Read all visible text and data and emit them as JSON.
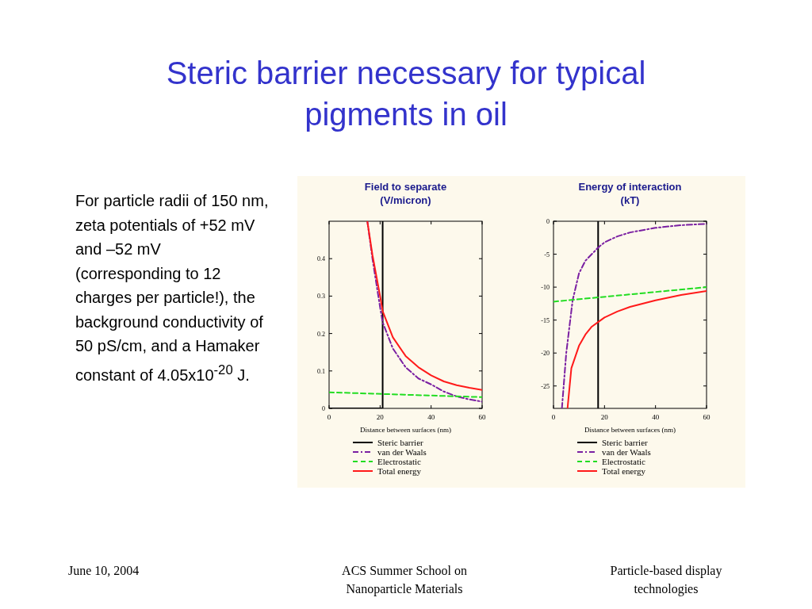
{
  "chart_data": [
    {
      "type": "other",
      "title": "Steric barrier necessary for typical pigments in oil",
      "annotations": [
        "For particle radii of 150 nm, zeta potentials of +52 mV and –52 mV (corresponding to 12 charges per particle!), the background conductivity of 50 pS/cm, and a Hamaker constant of 4.05x10$^{-20}$ J.",
        "June 10, 2004",
        "ACS Summer School on Nanoparticle Materials",
        "Particle-based display technologies"
      ]
    },
    {
      "type": "line",
      "title": "Field to separate",
      "subtitle": "(V/micron)",
      "xlabel": "Distance between surfaces (nm)",
      "xlim": [
        0,
        60
      ],
      "xticks": [
        0,
        20,
        40,
        60
      ],
      "ylim": [
        0,
        0.5
      ],
      "yticks": [
        0,
        0.1,
        0.2,
        0.3,
        0.4
      ],
      "legend": "bottom",
      "grid": false,
      "series": [
        {
          "name": "Steric barrier",
          "color": "#000000",
          "line_style": "solid",
          "x": [
            0,
            21,
            21
          ],
          "values": [
            0,
            0,
            0.5
          ]
        },
        {
          "name": "van der Waals",
          "color": "#7a1fa2",
          "line_style": "dashdot",
          "x": [
            15,
            17,
            20,
            21,
            25,
            30,
            35,
            40,
            45,
            50,
            55,
            60
          ],
          "values": [
            0.5,
            0.4,
            0.27,
            0.23,
            0.16,
            0.11,
            0.08,
            0.064,
            0.045,
            0.032,
            0.024,
            0.018
          ]
        },
        {
          "name": "Electrostatic",
          "color": "#22dd22",
          "line_style": "dashed",
          "x": [
            0,
            60
          ],
          "values": [
            0.043,
            0.03
          ]
        },
        {
          "name": "Total energy",
          "color": "#ff1a1a",
          "line_style": "solid",
          "x": [
            15,
            17,
            20,
            21,
            25,
            30,
            35,
            40,
            45,
            50,
            55,
            60
          ],
          "values": [
            0.5,
            0.41,
            0.3,
            0.26,
            0.19,
            0.14,
            0.11,
            0.088,
            0.072,
            0.062,
            0.055,
            0.049
          ]
        }
      ]
    },
    {
      "type": "line",
      "title": "Energy of interaction",
      "subtitle": "(kT)",
      "xlabel": "Distance between surfaces (nm)",
      "xlim": [
        0,
        60
      ],
      "xticks": [
        0,
        20,
        40,
        60
      ],
      "ylim": [
        -28.4,
        0
      ],
      "yticks": [
        0,
        -5,
        -10,
        -15,
        -20,
        -25
      ],
      "legend": "bottom",
      "grid": false,
      "series": [
        {
          "name": "Steric barrier",
          "color": "#000000",
          "line_style": "solid",
          "x": [
            17.5,
            17.5
          ],
          "values": [
            -28.4,
            0
          ]
        },
        {
          "name": "van der Waals",
          "color": "#7a1fa2",
          "line_style": "dashdot",
          "x": [
            3.3,
            5,
            7.5,
            10,
            12.5,
            15,
            17.5,
            20,
            25,
            30,
            40,
            50,
            60
          ],
          "values": [
            -28.4,
            -20,
            -12,
            -7.9,
            -6,
            -5,
            -4,
            -3.2,
            -2.3,
            -1.7,
            -1,
            -0.6,
            -0.4
          ]
        },
        {
          "name": "Electrostatic",
          "color": "#22dd22",
          "line_style": "dashed",
          "x": [
            0,
            60
          ],
          "values": [
            -12.2,
            -10
          ]
        },
        {
          "name": "Total energy",
          "color": "#ff1a1a",
          "line_style": "solid",
          "x": [
            5.5,
            7,
            10,
            12.5,
            15,
            17.5,
            20,
            25,
            30,
            40,
            50,
            60
          ],
          "values": [
            -28.4,
            -22.3,
            -18.9,
            -17.2,
            -16,
            -15.3,
            -14.6,
            -13.7,
            -13,
            -12,
            -11.2,
            -10.6
          ]
        }
      ]
    }
  ]
}
